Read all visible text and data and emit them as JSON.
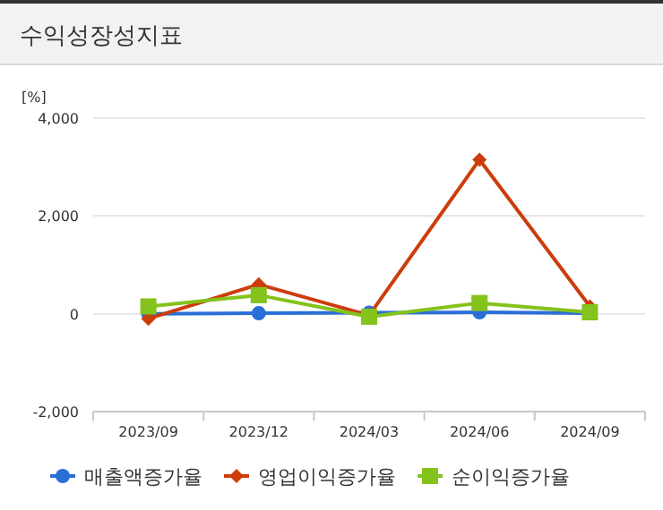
{
  "chart_data": {
    "type": "line",
    "title": "수익성장성지표",
    "ylabel": "[%]",
    "categories": [
      "2023/09",
      "2023/12",
      "2024/03",
      "2024/06",
      "2024/09"
    ],
    "series": [
      {
        "name": "매출액증가율",
        "color": "#2a6fd8",
        "marker": "circle",
        "values": [
          0,
          10,
          20,
          30,
          10
        ]
      },
      {
        "name": "영업이익증가율",
        "color": "#cc3d0c",
        "marker": "diamond",
        "values": [
          -100,
          600,
          -30,
          3150,
          150
        ]
      },
      {
        "name": "순이익증가율",
        "color": "#84c21c",
        "marker": "square",
        "values": [
          150,
          380,
          -60,
          220,
          30
        ]
      }
    ],
    "ylim": [
      -2000,
      4000
    ],
    "yticks": [
      {
        "value": -2000,
        "label": "-2,000"
      },
      {
        "value": 0,
        "label": "0"
      },
      {
        "value": 2000,
        "label": "2,000"
      },
      {
        "value": 4000,
        "label": "4,000"
      }
    ],
    "grid": "y",
    "legend": "bottom"
  }
}
